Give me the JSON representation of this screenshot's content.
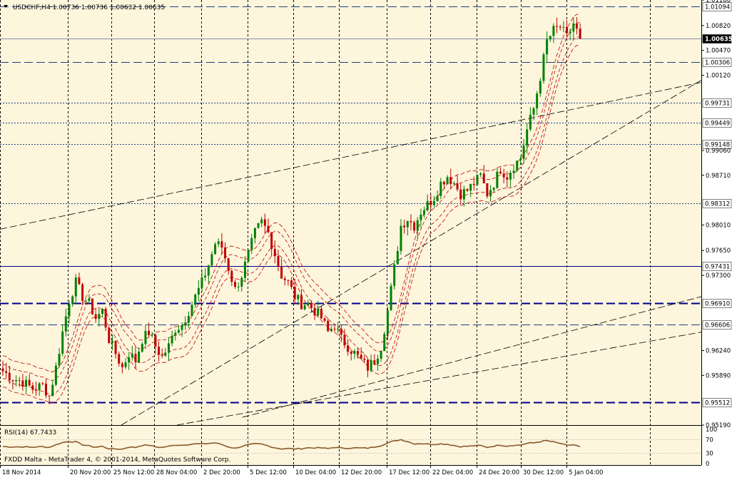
{
  "header": {
    "symbol_line": "USDCHF,H4  1.00736 1.00736 1.00632 1.00635"
  },
  "rsi_header": "RSI(14) 67.7433",
  "footer_label": "FXDD Malta - MetaTrader 4, © 2001-2014, MetaQuotes Software Corp.",
  "colors": {
    "background": "#fdf5dc",
    "page": "#ffffff",
    "grid": "#000000",
    "candle_bull": "#008000",
    "candle_bear": "#c00000",
    "bands": "#c00000",
    "level_dashed": "#1f3f7f",
    "level_bold": "#00008b",
    "trendline": "#000000",
    "rsi_line": "#8b5a2b",
    "price_label_bg": "#000000"
  },
  "chart_data": [
    {
      "type": "candlestick",
      "symbol": "USDCHF",
      "timeframe": "H4",
      "ylim": [
        0.9519,
        1.0113
      ],
      "y_ticks": [
        "1.01180",
        "1.00820",
        "1.00470",
        "1.00120",
        "0.99060",
        "0.98710",
        "0.98010",
        "0.97650",
        "0.97300",
        "0.96240",
        "0.95890",
        "0.95190"
      ],
      "x_ticks": [
        "18 Nov 2014",
        "20 Nov 20:00",
        "25 Nov 12:00",
        "28 Nov 04:00",
        "2 Dec 20:00",
        "5 Dec 12:00",
        "10 Dec 04:00",
        "12 Dec 20:00",
        "17 Dec 12:00",
        "22 Dec 04:00",
        "24 Dec 20:00",
        "30 Dec 12:00",
        "5 Jan 04:00"
      ],
      "price_levels": [
        {
          "label": "1.01094",
          "style": "dashed"
        },
        {
          "label": "1.00635",
          "style": "current"
        },
        {
          "label": "1.00306",
          "style": "dashed"
        },
        {
          "label": "0.99731",
          "style": "dotted"
        },
        {
          "label": "0.99449",
          "style": "dotted"
        },
        {
          "label": "0.99148",
          "style": "dotted"
        },
        {
          "label": "0.98312",
          "style": "dotted"
        },
        {
          "label": "0.97431",
          "style": "solid"
        },
        {
          "label": "0.96910",
          "style": "bold-dashed"
        },
        {
          "label": "0.96606",
          "style": "dashed"
        },
        {
          "label": "0.95512",
          "style": "bold-dashed"
        }
      ],
      "close_path": [
        [
          0,
          0.9595
        ],
        [
          3,
          0.9585
        ],
        [
          6,
          0.958
        ],
        [
          9,
          0.957
        ],
        [
          12,
          0.9575
        ],
        [
          14,
          0.956
        ],
        [
          16,
          0.96
        ],
        [
          18,
          0.965
        ],
        [
          20,
          0.9695
        ],
        [
          22,
          0.972
        ],
        [
          24,
          0.97
        ],
        [
          26,
          0.969
        ],
        [
          28,
          0.967
        ],
        [
          30,
          0.968
        ],
        [
          32,
          0.964
        ],
        [
          34,
          0.962
        ],
        [
          36,
          0.96
        ],
        [
          38,
          0.962
        ],
        [
          40,
          0.961
        ],
        [
          42,
          0.964
        ],
        [
          44,
          0.965
        ],
        [
          46,
          0.963
        ],
        [
          48,
          0.9615
        ],
        [
          50,
          0.963
        ],
        [
          52,
          0.9655
        ],
        [
          54,
          0.966
        ],
        [
          56,
          0.968
        ],
        [
          58,
          0.97
        ],
        [
          60,
          0.972
        ],
        [
          62,
          0.9745
        ],
        [
          64,
          0.9775
        ],
        [
          66,
          0.977
        ],
        [
          68,
          0.974
        ],
        [
          70,
          0.971
        ],
        [
          72,
          0.973
        ],
        [
          74,
          0.976
        ],
        [
          76,
          0.979
        ],
        [
          78,
          0.9805
        ],
        [
          80,
          0.979
        ],
        [
          82,
          0.976
        ],
        [
          84,
          0.973
        ],
        [
          86,
          0.972
        ],
        [
          88,
          0.97
        ],
        [
          90,
          0.969
        ],
        [
          92,
          0.969
        ],
        [
          94,
          0.968
        ],
        [
          96,
          0.967
        ],
        [
          98,
          0.965
        ],
        [
          100,
          0.966
        ],
        [
          102,
          0.964
        ],
        [
          104,
          0.963
        ],
        [
          106,
          0.962
        ],
        [
          108,
          0.961
        ],
        [
          110,
          0.96
        ],
        [
          112,
          0.961
        ],
        [
          114,
          0.963
        ],
        [
          116,
          0.968
        ],
        [
          118,
          0.974
        ],
        [
          120,
          0.98
        ],
        [
          122,
          0.981
        ],
        [
          124,
          0.98
        ],
        [
          126,
          0.982
        ],
        [
          128,
          0.983
        ],
        [
          130,
          0.984
        ],
        [
          132,
          0.986
        ],
        [
          134,
          0.987
        ],
        [
          136,
          0.986
        ],
        [
          138,
          0.9845
        ],
        [
          140,
          0.985
        ],
        [
          142,
          0.986
        ],
        [
          144,
          0.987
        ],
        [
          146,
          0.9845
        ],
        [
          148,
          0.986
        ],
        [
          150,
          0.988
        ],
        [
          152,
          0.987
        ],
        [
          154,
          0.9885
        ],
        [
          156,
          0.9895
        ],
        [
          158,
          0.9935
        ],
        [
          160,
          0.9965
        ],
        [
          162,
          1.001
        ],
        [
          164,
          1.006
        ],
        [
          166,
          1.0075
        ],
        [
          168,
          1.008
        ],
        [
          170,
          1.0065
        ],
        [
          172,
          1.0085
        ],
        [
          174,
          1.0064
        ]
      ],
      "n_bars": 175
    },
    {
      "type": "line",
      "name": "RSI(14)",
      "last_value": 67.7433,
      "ylim": [
        0,
        100
      ],
      "y_ticks": [
        "100",
        "70",
        "30",
        "0"
      ]
    }
  ]
}
